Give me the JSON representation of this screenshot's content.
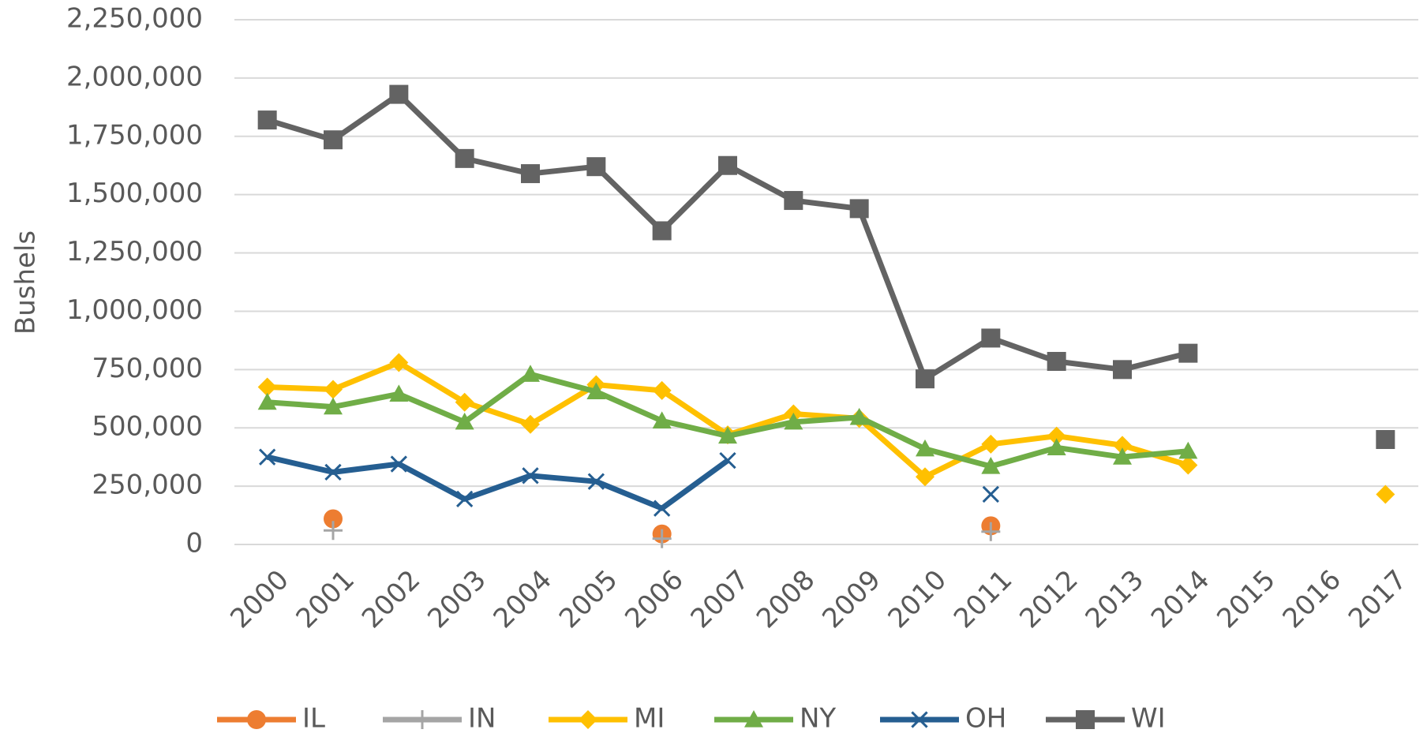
{
  "chart_data": {
    "type": "line",
    "y_label": "Bushels",
    "categories": [
      "2000",
      "2001",
      "2002",
      "2003",
      "2004",
      "2005",
      "2006",
      "2007",
      "2008",
      "2009",
      "2010",
      "2011",
      "2012",
      "2013",
      "2014",
      "2015",
      "2016",
      "2017"
    ],
    "series": [
      {
        "name": "IL",
        "color": "#ed7d31",
        "marker": "circle",
        "values": [
          null,
          110000,
          null,
          null,
          null,
          null,
          45000,
          null,
          null,
          null,
          null,
          80000,
          null,
          null,
          null,
          null,
          null,
          null
        ]
      },
      {
        "name": "IN",
        "color": "#a5a5a5",
        "marker": "plus",
        "values": [
          null,
          60000,
          null,
          null,
          null,
          null,
          25000,
          null,
          null,
          null,
          null,
          55000,
          null,
          null,
          null,
          null,
          null,
          null
        ]
      },
      {
        "name": "MI",
        "color": "#ffc000",
        "marker": "diamond",
        "values": [
          675000,
          665000,
          780000,
          610000,
          515000,
          685000,
          660000,
          470000,
          560000,
          540000,
          290000,
          430000,
          465000,
          425000,
          340000,
          null,
          null,
          215000
        ]
      },
      {
        "name": "NY",
        "color": "#70ad47",
        "marker": "triangle",
        "values": [
          610000,
          590000,
          645000,
          525000,
          730000,
          655000,
          530000,
          465000,
          525000,
          545000,
          410000,
          335000,
          415000,
          375000,
          400000,
          null,
          null,
          null
        ]
      },
      {
        "name": "OH",
        "color": "#255e91",
        "marker": "x",
        "values": [
          375000,
          310000,
          345000,
          195000,
          295000,
          270000,
          155000,
          360000,
          null,
          null,
          null,
          215000,
          null,
          null,
          null,
          null,
          null,
          null
        ]
      },
      {
        "name": "WI",
        "color": "#636363",
        "marker": "square",
        "values": [
          1820000,
          1735000,
          1930000,
          1655000,
          1590000,
          1620000,
          1345000,
          1625000,
          1475000,
          1440000,
          710000,
          885000,
          785000,
          750000,
          820000,
          null,
          null,
          450000
        ]
      }
    ],
    "ylim": [
      0,
      2250000
    ],
    "yticks": [
      0,
      {
        "value": 250000,
        "label": "250,000"
      },
      {
        "value": 500000,
        "label": "500,000"
      },
      {
        "value": 750000,
        "label": "750,000"
      },
      {
        "value": 1000000,
        "label": "1,000,000"
      },
      {
        "value": 1250000,
        "label": "1,250,000"
      },
      {
        "value": 1500000,
        "label": "1,500,000"
      },
      {
        "value": 1750000,
        "label": "1,750,000"
      },
      {
        "value": 2000000,
        "label": "2,000,000"
      },
      {
        "value": 2250000,
        "label": "2,250,000"
      }
    ],
    "grid": true,
    "legend": "bottom"
  }
}
